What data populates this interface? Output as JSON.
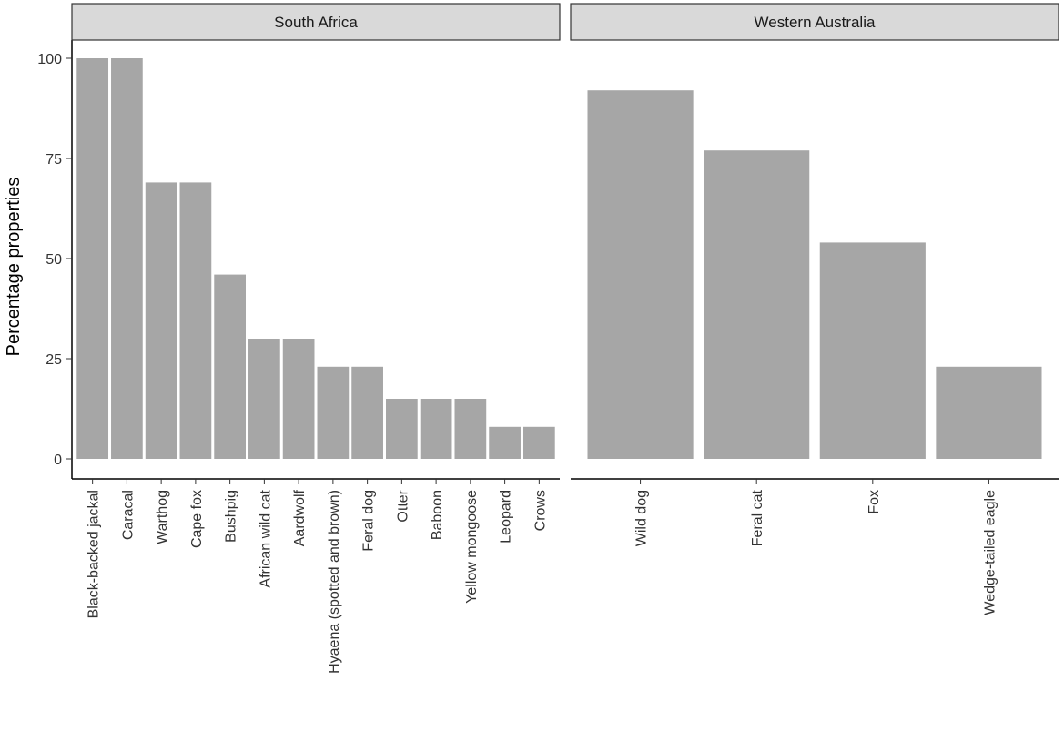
{
  "chart_data": {
    "type": "bar",
    "ylabel": "Percentage properties",
    "xlabel": "",
    "ylim": [
      0,
      100
    ],
    "y_ticks": [
      0,
      25,
      50,
      75,
      100
    ],
    "grid": false,
    "bar_color": "#a6a6a6",
    "strip_color": "#d9d9d9",
    "panels": [
      {
        "facet": "South Africa",
        "categories": [
          "Black-backed jackal",
          "Caracal",
          "Warthog",
          "Cape fox",
          "Bushpig",
          "African wild cat",
          "Aardwolf",
          "Hyaena (spotted and brown)",
          "Feral dog",
          "Otter",
          "Baboon",
          "Yellow mongoose",
          "Leopard",
          "Crows"
        ],
        "values": [
          100,
          100,
          69,
          69,
          46,
          30,
          30,
          23,
          23,
          15,
          15,
          15,
          8,
          8
        ]
      },
      {
        "facet": "Western Australia",
        "categories": [
          "Wild dog",
          "Feral cat",
          "Fox",
          "Wedge-tailed eagle"
        ],
        "values": [
          92,
          77,
          54,
          23
        ]
      }
    ]
  }
}
